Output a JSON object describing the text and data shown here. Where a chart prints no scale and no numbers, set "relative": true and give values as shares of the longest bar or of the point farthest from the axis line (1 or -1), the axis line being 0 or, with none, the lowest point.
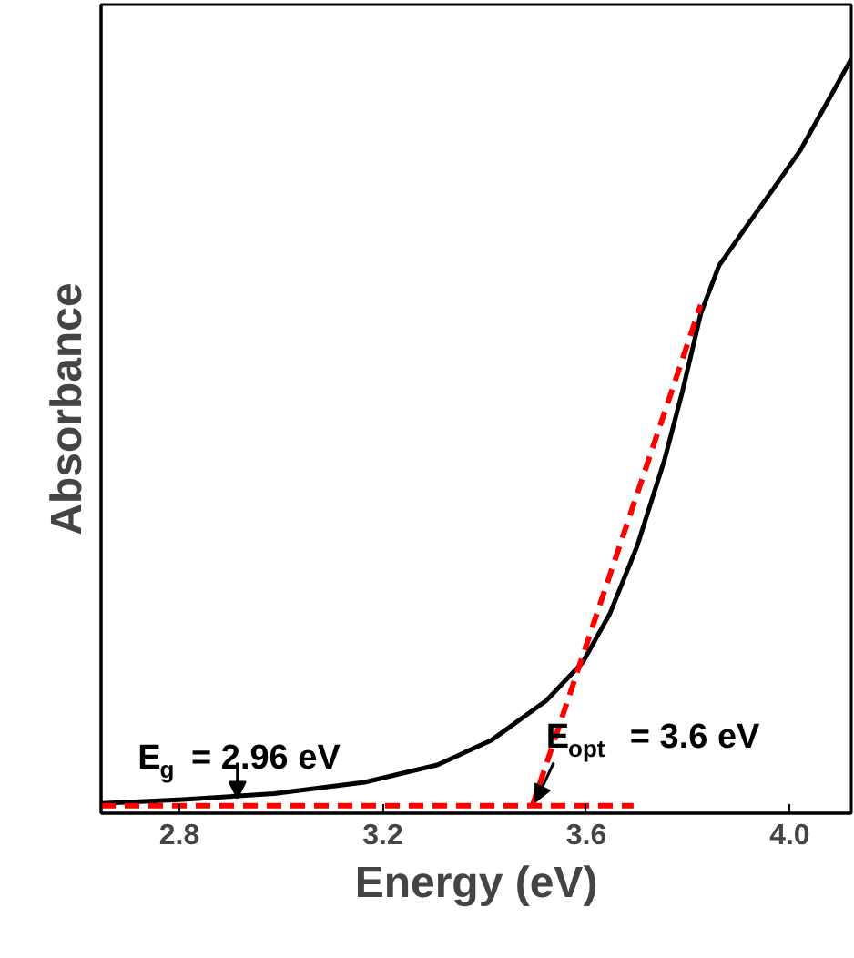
{
  "chart_data": {
    "type": "line",
    "xlabel": "Energy (eV)",
    "ylabel": "Absorbance",
    "relative": true,
    "xlim": [
      2.646,
      4.121
    ],
    "xticks": [
      2.8,
      3.2,
      3.6,
      {
        "value": 4.0,
        "label": "4.0"
      }
    ],
    "tick_labels": "x",
    "grid": false,
    "series": [
      {
        "color": "#000000",
        "line_style": "solid",
        "x": [
          2.646,
          2.807,
          2.986,
          3.164,
          3.307,
          3.414,
          3.521,
          3.593,
          3.646,
          3.7,
          3.754,
          3.789,
          3.825,
          3.861,
          3.914,
          3.968,
          4.021,
          4.075,
          4.121
        ],
        "values": [
          0.013,
          0.018,
          0.026,
          0.041,
          0.064,
          0.097,
          0.149,
          0.2,
          0.264,
          0.354,
          0.469,
          0.559,
          0.662,
          0.726,
          0.777,
          0.828,
          0.879,
          0.944,
          1.0
        ]
      },
      {
        "color": "#ff0000",
        "line_style": "dashed",
        "x": [
          2.646,
          3.693
        ],
        "values": [
          0.01,
          0.01
        ]
      },
      {
        "color": "#ff0000",
        "line_style": "dashed",
        "x": [
          3.493,
          3.825
        ],
        "values": [
          0.008,
          0.674
        ]
      }
    ],
    "annotations": [
      {
        "text": "E$_{g}$ = 2.96 eV",
        "x": 2.914,
        "y": 0.02
      },
      {
        "text": "E$_{opt}$ = 3.6 eV",
        "x": 3.5,
        "y": 0.015
      }
    ]
  }
}
